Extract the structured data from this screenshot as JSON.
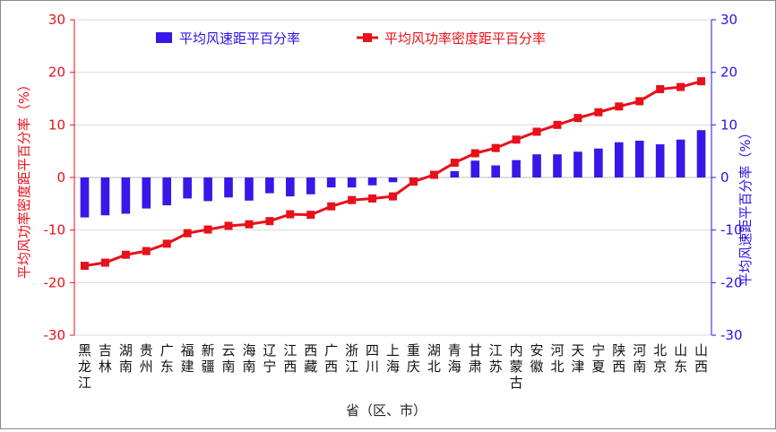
{
  "chart_data": {
    "type": "bar+line",
    "categories": [
      "黑龙江",
      "吉林",
      "湖南",
      "贵州",
      "广东",
      "福建",
      "新疆",
      "云南",
      "海南",
      "辽宁",
      "江西",
      "西藏",
      "广西",
      "浙江",
      "四川",
      "上海",
      "重庆",
      "湖北",
      "青海",
      "甘肃",
      "江苏",
      "内蒙古",
      "安徽",
      "河北",
      "天津",
      "宁夏",
      "陕西",
      "河南",
      "北京",
      "山东",
      "山西"
    ],
    "xlabel": "省（区、市）",
    "y_left": {
      "label": "平均风功率密度距平百分率（%）",
      "ticks": [
        "30",
        "20",
        "10",
        "0",
        "-10",
        "-20",
        "-30"
      ],
      "range": [
        -30,
        30
      ],
      "color": "#e8101a"
    },
    "y_right": {
      "label": "平均风速距平百分率（%）",
      "ticks": [
        "30",
        "20",
        "10",
        "0",
        "-10",
        "-20",
        "-30"
      ],
      "range": [
        -30,
        30
      ],
      "color": "#2b12e6"
    },
    "series": [
      {
        "name": "平均风速距平百分率",
        "type": "bar",
        "axis": "right",
        "color": "#3a17e8",
        "values": [
          -7.6,
          -7.2,
          -6.9,
          -5.9,
          -5.3,
          -4.0,
          -4.5,
          -3.8,
          -4.4,
          -3.0,
          -3.6,
          -3.2,
          -1.9,
          -1.9,
          -1.5,
          -0.9,
          -0.4,
          -0.1,
          1.2,
          3.2,
          2.3,
          3.3,
          4.4,
          4.4,
          4.9,
          5.5,
          6.7,
          7.0,
          6.3,
          7.2,
          9.0
        ]
      },
      {
        "name": "平均风功率密度距平百分率",
        "type": "line",
        "axis": "left",
        "color": "#e8101a",
        "values": [
          -16.8,
          -16.2,
          -14.7,
          -14.0,
          -12.6,
          -10.6,
          -9.9,
          -9.2,
          -8.9,
          -8.3,
          -7.0,
          -7.1,
          -5.5,
          -4.3,
          -4.0,
          -3.6,
          -0.8,
          0.5,
          2.8,
          4.6,
          5.6,
          7.2,
          8.7,
          10.0,
          11.3,
          12.4,
          13.5,
          14.5,
          16.8,
          17.2,
          18.3
        ]
      }
    ],
    "legend": {
      "position": "top-left"
    }
  }
}
